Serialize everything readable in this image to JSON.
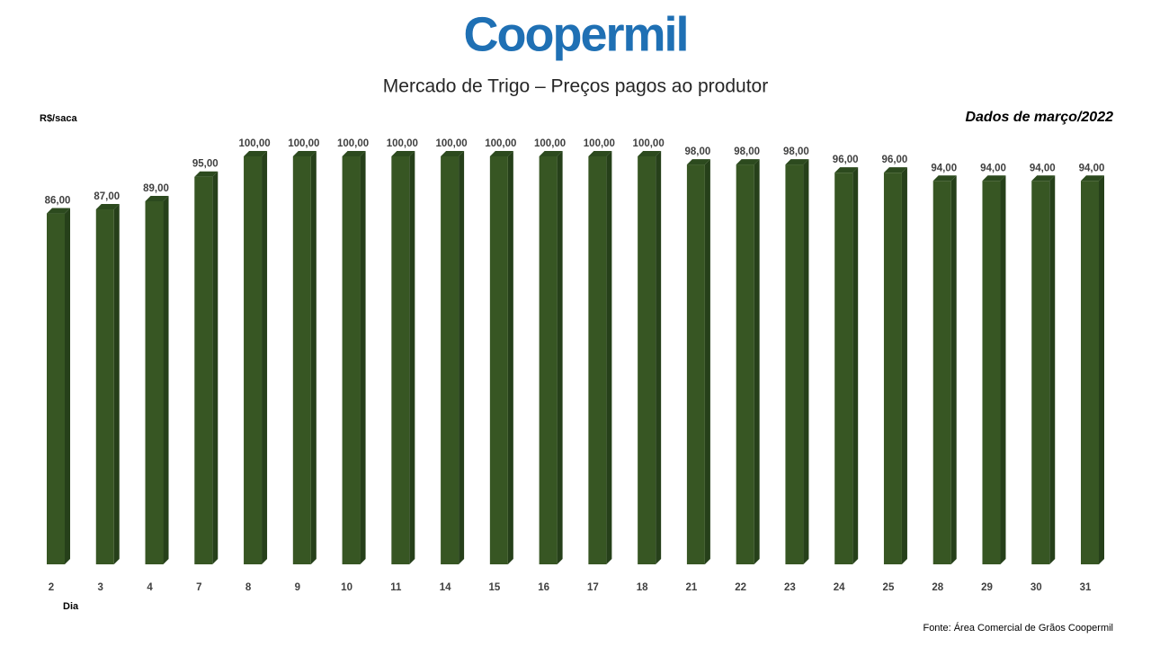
{
  "logo": "Coopermil",
  "chart_data": {
    "type": "bar",
    "title": "Mercado de Trigo – Preços pagos ao produtor",
    "subtitle": "Dados de março/2022",
    "y_label": "R$/saca",
    "x_label": "Dia",
    "source": "Fonte:  Área Comercial de Grãos Coopermil",
    "categories": [
      "2",
      "3",
      "4",
      "7",
      "8",
      "9",
      "10",
      "11",
      "14",
      "15",
      "16",
      "17",
      "18",
      "21",
      "22",
      "23",
      "24",
      "25",
      "28",
      "29",
      "30",
      "31"
    ],
    "values": [
      86,
      87,
      89,
      95,
      100,
      100,
      100,
      100,
      100,
      100,
      100,
      100,
      100,
      98,
      98,
      98,
      96,
      96,
      94,
      94,
      94,
      94
    ],
    "value_labels": [
      "86,00",
      "87,00",
      "89,00",
      "95,00",
      "100,00",
      "100,00",
      "100,00",
      "100,00",
      "100,00",
      "100,00",
      "100,00",
      "100,00",
      "100,00",
      "98,00",
      "98,00",
      "98,00",
      "96,00",
      "96,00",
      "94,00",
      "94,00",
      "94,00",
      "94,00"
    ],
    "color": "#375623"
  }
}
